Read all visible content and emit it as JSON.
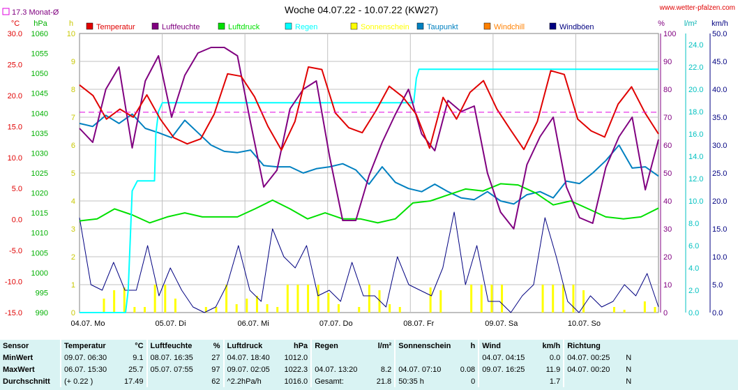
{
  "header": {
    "title": "Woche 04.07.22 - 10.07.22 (KW27)",
    "site": "www.wetter-pfalzen.com",
    "month_avg_label": "17.3 Monat-Ø"
  },
  "units": {
    "temp": "°C",
    "pressure": "hPa",
    "sun": "h",
    "hum": "%",
    "rain": "l/m²",
    "wind": "km/h"
  },
  "colors": {
    "temp": "#e00000",
    "hum": "#800080",
    "pressure": "#00e000",
    "rain": "#00ffff",
    "sun": "#ffff00",
    "dew": "#0080c0",
    "windchill": "#ff8000",
    "gust": "#000080",
    "grid": "#c0c0c0",
    "avg": "#e000e0"
  },
  "legend": [
    {
      "label": "Temperatur",
      "color": "#e00000"
    },
    {
      "label": "Luftfeuchte",
      "color": "#800080"
    },
    {
      "label": "Luftdruck",
      "color": "#00e000"
    },
    {
      "label": "Regen",
      "color": "#00ffff"
    },
    {
      "label": "Sonnenschein",
      "color": "#ffff00"
    },
    {
      "label": "Taupunkt",
      "color": "#0080c0"
    },
    {
      "label": "Windchill",
      "color": "#ff8000"
    },
    {
      "label": "Windböen",
      "color": "#000080"
    }
  ],
  "chart_data": {
    "type": "line",
    "title": "Woche 04.07.22 - 10.07.22 (KW27)",
    "x_labels": [
      "04.07. Mo",
      "05.07. Di",
      "06.07. Mi",
      "07.07. Do",
      "08.07. Fr",
      "09.07. Sa",
      "10.07. So"
    ],
    "axes": {
      "temp": {
        "label": "°C",
        "ticks": [
          "30.0",
          "25.0",
          "20.0",
          "15.0",
          "10.0",
          "5.0",
          "0.0",
          "-5.0",
          "-10.0",
          "-15.0"
        ],
        "ylim": [
          -15,
          30
        ]
      },
      "pressure": {
        "label": "hPa",
        "ticks": [
          "1060",
          "1055",
          "1050",
          "1045",
          "1040",
          "1035",
          "1030",
          "1025",
          "1020",
          "1015",
          "1010",
          "1005",
          "1000",
          "995",
          "990"
        ],
        "ylim": [
          990,
          1060
        ]
      },
      "sun": {
        "label": "h",
        "ticks": [
          "10",
          "9",
          "8",
          "7",
          "6",
          "5",
          "4",
          "3",
          "2",
          "1",
          "0"
        ],
        "ylim": [
          0,
          10
        ]
      },
      "hum": {
        "label": "%",
        "ticks": [
          "100",
          "90",
          "80",
          "70",
          "60",
          "50",
          "40",
          "30",
          "20",
          "10",
          "0"
        ],
        "ylim": [
          0,
          100
        ]
      },
      "rain": {
        "label": "l/m²",
        "ticks": [
          "24.0",
          "22.0",
          "20.0",
          "18.0",
          "16.0",
          "14.0",
          "12.0",
          "10.0",
          "8.0",
          "6.0",
          "4.0",
          "2.0",
          "0.0"
        ],
        "ylim": [
          0,
          25
        ]
      },
      "wind": {
        "label": "km/h",
        "ticks": [
          "50.0",
          "45.0",
          "40.0",
          "35.0",
          "30.0",
          "25.0",
          "20.0",
          "15.0",
          "10.0",
          "5.0",
          "0.0"
        ],
        "ylim": [
          0,
          50
        ]
      }
    },
    "month_avg_temp": 17.3,
    "series": [
      {
        "name": "Temperatur",
        "axis": "temp",
        "values": [
          21.7,
          20,
          16.2,
          17.8,
          16.5,
          20.1,
          16.2,
          13.2,
          12.2,
          13,
          17,
          23.5,
          23.1,
          19.8,
          15,
          11.2,
          15.8,
          24.6,
          24.2,
          17.2,
          14.8,
          14,
          17.5,
          21.5,
          19.8,
          17,
          11.5,
          19.7,
          16.2,
          20.5,
          22.4,
          17.8,
          14.5,
          11.3,
          15.8,
          24,
          23.4,
          16.2,
          14.3,
          13.3,
          18.6,
          21.4,
          17.2,
          13.8
        ]
      },
      {
        "name": "Luftfeuchte",
        "axis": "hum",
        "values": [
          66,
          61,
          80,
          88,
          59,
          83,
          92,
          70,
          85,
          93,
          95,
          95,
          92,
          68,
          45,
          51,
          73,
          80,
          83,
          56,
          33,
          33,
          49,
          61,
          71,
          80,
          64,
          58,
          76,
          72,
          74,
          50,
          36,
          30,
          53,
          63,
          70,
          45,
          34,
          32,
          52,
          63,
          70,
          44,
          62
        ]
      },
      {
        "name": "Luftdruck",
        "axis": "pressure",
        "values": [
          1013,
          1013.5,
          1016,
          1014.5,
          1012.5,
          1014,
          1015,
          1014,
          1014,
          1014,
          1016,
          1018.2,
          1016,
          1013.5,
          1015,
          1013.5,
          1013.5,
          1012.5,
          1013.5,
          1017.5,
          1018,
          1019.5,
          1021,
          1020.5,
          1022.3,
          1022,
          1020,
          1017,
          1018,
          1016,
          1014,
          1013.5,
          1014,
          1016.2
        ]
      },
      {
        "name": "Regen",
        "axis": "rain",
        "points": [
          [
            0,
            0
          ],
          [
            3.5,
            0
          ],
          [
            3.7,
            2.0
          ],
          [
            4,
            10.9
          ],
          [
            4.4,
            11.8
          ],
          [
            5.7,
            11.8
          ],
          [
            5.8,
            16
          ],
          [
            6,
            18
          ],
          [
            6.3,
            18.8
          ],
          [
            25.4,
            18.8
          ],
          [
            25.6,
            21
          ],
          [
            25.8,
            21.8
          ],
          [
            44,
            21.8
          ]
        ]
      },
      {
        "name": "Taupunkt",
        "axis": "temp",
        "values": [
          15.5,
          15,
          16.8,
          15.5,
          17,
          14.7,
          14,
          13.2,
          16,
          14,
          12,
          11,
          10.8,
          11.2,
          8.7,
          8.5,
          8.5,
          7.5,
          8.2,
          8.5,
          9,
          8,
          5.7,
          8.5,
          6,
          5,
          4.5,
          5.7,
          4.5,
          3.5,
          3.2,
          4.5,
          3,
          2.5,
          4,
          4.5,
          3.5,
          6.2,
          5.8,
          7.5,
          9.5,
          12,
          8.3,
          8.5,
          7
        ]
      },
      {
        "name": "Windböen",
        "axis": "wind",
        "values": [
          17,
          5,
          4,
          9,
          4,
          4,
          12,
          3,
          8,
          4,
          1,
          0,
          1,
          5,
          12,
          4,
          2,
          15,
          10,
          8,
          12,
          3,
          4,
          2,
          9,
          3,
          3,
          1,
          10,
          5,
          4,
          3,
          8,
          18,
          5,
          12,
          2,
          2,
          0,
          3,
          5,
          17,
          10,
          2,
          0,
          3,
          1,
          2,
          5,
          3,
          7,
          1
        ]
      },
      {
        "name": "Sonnenschein",
        "axis": "sun",
        "type": "bar",
        "values": [
          0.5,
          0.8,
          0.9,
          0.2,
          0.2,
          1.0,
          1.0,
          0.5,
          0,
          0,
          0.2,
          0.2,
          1.0,
          0.3,
          0.5,
          0.6,
          0.3,
          0.2,
          1.0,
          1.0,
          1.0,
          1.0,
          0.7,
          0.3,
          0,
          0.2,
          1.0,
          0.8,
          0.3,
          0.2,
          0,
          0,
          0.9,
          0.8,
          0,
          0,
          1.0,
          1.0,
          1.0,
          1.0,
          0,
          0,
          0,
          1.0,
          1.0,
          1.0,
          1.0,
          0.8,
          0,
          0,
          0.2,
          0.1,
          0,
          0.4,
          0.2
        ]
      }
    ]
  },
  "stats": {
    "headers": [
      "Sensor",
      "Temperatur",
      "°C",
      "Luftfeuchte",
      "%",
      "Luftdruck",
      "hPa",
      "Regen",
      "l/m²",
      "Sonnenschein",
      "h",
      "Wind",
      "km/h",
      "Richtung"
    ],
    "rows": [
      {
        "label": "MinWert",
        "cells": [
          "09.07. 06:30",
          "9.1",
          "08.07. 16:35",
          "27",
          "04.07. 18:40",
          "1012.0",
          "",
          "",
          "",
          "",
          "04.07. 04:15",
          "0.0",
          "04.07. 00:25",
          "N"
        ]
      },
      {
        "label": "MaxWert",
        "cells": [
          "06.07. 15:30",
          "25.7",
          "05.07. 07:55",
          "97",
          "09.07. 02:05",
          "1022.3",
          "04.07. 13:20",
          "8.2",
          "04.07. 07:10",
          "0.08",
          "09.07. 16:25",
          "11.9",
          "04.07. 00:20",
          "N"
        ]
      },
      {
        "label": "Durchschnitt",
        "cells": [
          "(+ 0.22 )",
          "17.49",
          "",
          "62",
          "^2.2hPa/h",
          "1016.0",
          "Gesamt:",
          "21.8",
          "50:35 h",
          "0",
          "",
          "1.7",
          "",
          "N"
        ]
      }
    ]
  }
}
